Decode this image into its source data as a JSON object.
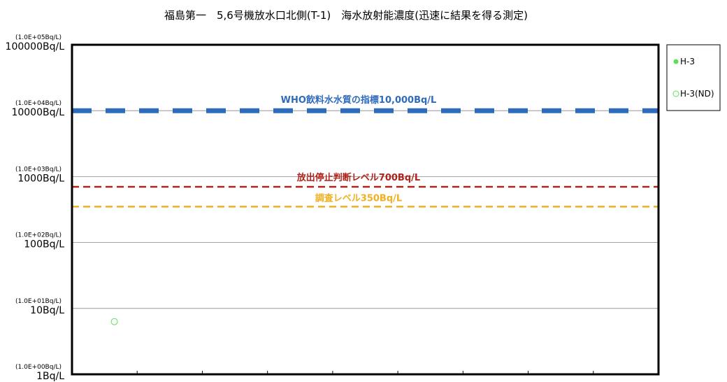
{
  "chart_data": {
    "type": "scatter",
    "title": "福島第一　5,6号機放水口北側(T-1)　海水放射能濃度(迅速に結果を得る測定)",
    "xlabel": "",
    "ylabel": "",
    "y_scale": "log",
    "ylim": [
      1,
      100000
    ],
    "y_ticks": [
      {
        "value": 100000,
        "label": "100000Bq/L",
        "sublabel": "(1.0E+05Bq/L)"
      },
      {
        "value": 10000,
        "label": "10000Bq/L",
        "sublabel": "(1.0E+04Bq/L)"
      },
      {
        "value": 1000,
        "label": "1000Bq/L",
        "sublabel": "(1.0E+03Bq/L)"
      },
      {
        "value": 100,
        "label": "100Bq/L",
        "sublabel": "(1.0E+02Bq/L)"
      },
      {
        "value": 10,
        "label": "10Bq/L",
        "sublabel": "(1.0E+01Bq/L)"
      },
      {
        "value": 1,
        "label": "1Bq/L",
        "sublabel": "(1.0E+00Bq/L)"
      }
    ],
    "x_tick_count": 9,
    "grid": true,
    "legend_position": "right",
    "series": [
      {
        "name": "H-3",
        "marker": "filled-circle",
        "color": "#5ce05c",
        "points": []
      },
      {
        "name": "H-3(ND)",
        "marker": "hollow-circle",
        "color": "#5ce05c",
        "points": [
          {
            "x_index": 0.65,
            "y": 6.3
          }
        ]
      }
    ],
    "reference_lines": [
      {
        "value": 10000,
        "label": "WHO飲料水水質の指標10,000Bq/L",
        "color": "#2f6bbd",
        "style": "thick-dashed"
      },
      {
        "value": 700,
        "label": "放出停止判断レベル700Bq/L",
        "color": "#b0241c",
        "style": "dashed"
      },
      {
        "value": 350,
        "label": "調査レベル350Bq/L",
        "color": "#f0b020",
        "style": "dashed"
      }
    ]
  }
}
